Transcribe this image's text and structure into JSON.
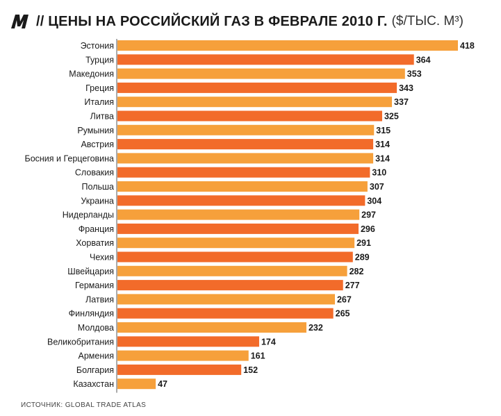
{
  "header": {
    "logo_text": "M",
    "title": "// ЦЕНЫ НА РОССИЙСКИЙ ГАЗ В ФЕВРАЛЕ 2010 Г.",
    "unit": "($/ТЫС. М³)"
  },
  "source": "ИСТОЧНИК: GLOBAL TRADE ATLAS",
  "colors": {
    "bar_light": "#f6a03b",
    "bar_dark": "#f26b2a",
    "logo": "#1a1a1a"
  },
  "chart_data": {
    "type": "bar",
    "orientation": "horizontal",
    "title": "ЦЕНЫ НА РОССИЙСКИЙ ГАЗ В ФЕВРАЛЕ 2010 Г.",
    "xlabel": "",
    "ylabel": "",
    "grid": false,
    "categories": [
      "Эстония",
      "Турция",
      "Македония",
      "Греция",
      "Италия",
      "Литва",
      "Румыния",
      "Австрия",
      "Босния и Герцеговина",
      "Словакия",
      "Польша",
      "Украина",
      "Нидерланды",
      "Франция",
      "Хорватия",
      "Чехия",
      "Швейцария",
      "Германия",
      "Латвия",
      "Финляндия",
      "Молдова",
      "Великобритания",
      "Армения",
      "Болгария",
      "Казахстан"
    ],
    "values": [
      418,
      364,
      353,
      343,
      337,
      325,
      315,
      314,
      314,
      310,
      307,
      304,
      297,
      296,
      291,
      289,
      282,
      277,
      267,
      265,
      232,
      174,
      161,
      152,
      47
    ],
    "xlim": [
      0,
      418
    ]
  }
}
